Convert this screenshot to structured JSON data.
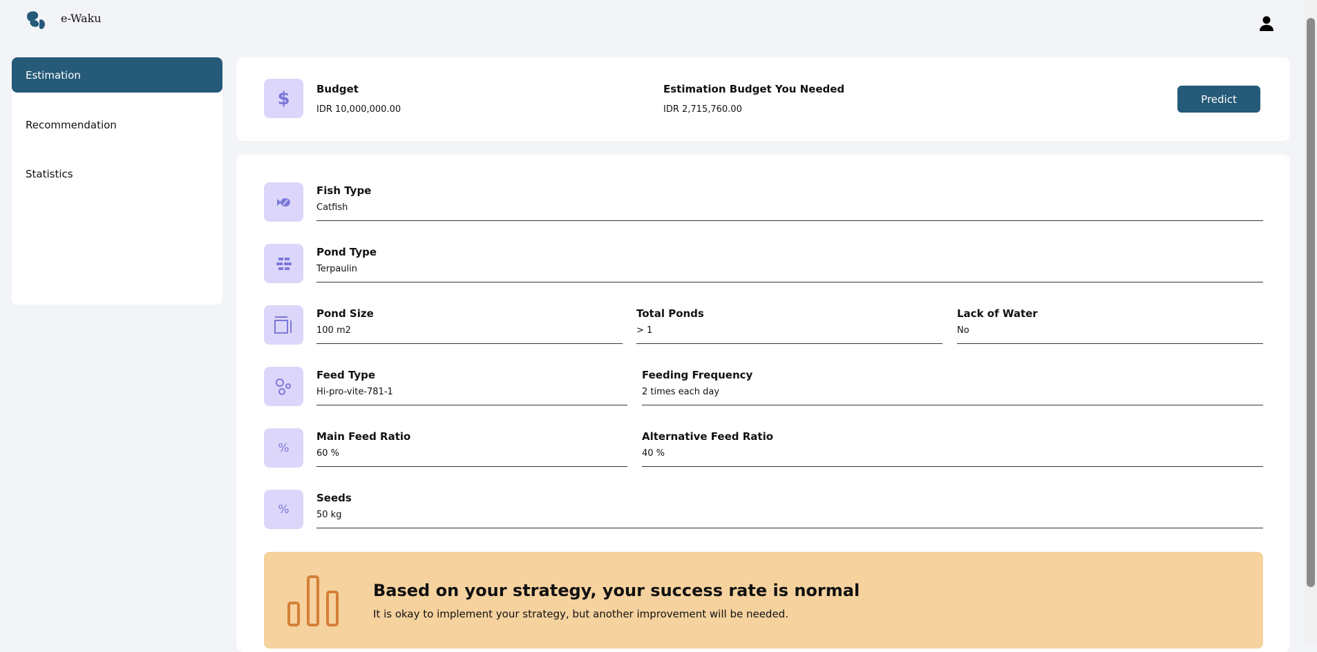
{
  "app": {
    "title": "e-Waku",
    "logo_icon": "fish-blob-logo",
    "user_icon": "user-icon"
  },
  "sidebar": {
    "items": [
      {
        "label": "Estimation",
        "active": true
      },
      {
        "label": "Recommendation",
        "active": false
      },
      {
        "label": "Statistics",
        "active": false
      }
    ]
  },
  "budget": {
    "label": "Budget",
    "value": "IDR 10,000,000.00",
    "estimate_label": "Estimation Budget You Needed",
    "estimate_value": "IDR 2,715,760.00",
    "predict_label": "Predict"
  },
  "form": {
    "fish_type": {
      "label": "Fish Type",
      "value": "Catfish"
    },
    "pond_type": {
      "label": "Pond Type",
      "value": "Terpaulin"
    },
    "pond_size": {
      "label": "Pond Size",
      "value": "100 m2"
    },
    "total_ponds": {
      "label": "Total Ponds",
      "value": "> 1"
    },
    "lack_of_water": {
      "label": "Lack of Water",
      "value": "No"
    },
    "feed_type": {
      "label": "Feed Type",
      "value": "Hi-pro-vite-781-1"
    },
    "feeding_frequency": {
      "label": "Feeding Frequency",
      "value": "2 times each day"
    },
    "main_feed_ratio": {
      "label": "Main Feed Ratio",
      "value": "60 %"
    },
    "alt_feed_ratio": {
      "label": "Alternative Feed Ratio",
      "value": "40 %"
    },
    "seeds": {
      "label": "Seeds",
      "value": "50 kg"
    }
  },
  "result": {
    "title": "Based on your strategy, your success rate is normal",
    "message": "It is okay to implement your strategy, but another improvement will be needed.",
    "icon": "bar-chart-icon"
  },
  "colors": {
    "primary": "#255a78",
    "icon_bg": "#dcd6fb",
    "icon": "#7b78d8",
    "banner": "#f5d29e",
    "banner_icon": "#d47f36"
  }
}
